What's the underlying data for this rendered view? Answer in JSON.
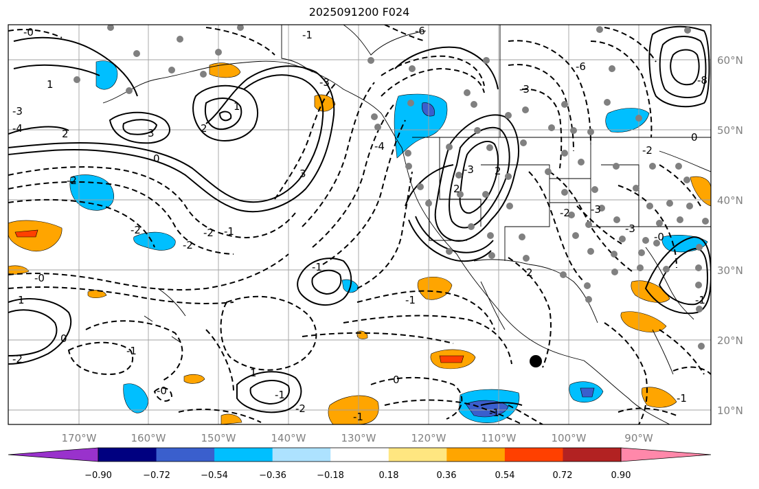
{
  "title": "2025091200 F024",
  "lon_labels": [
    "170°W",
    "160°W",
    "150°W",
    "140°W",
    "130°W",
    "120°W",
    "110°W",
    "100°W",
    "90°W"
  ],
  "lat_labels": [
    "60°N",
    "50°N",
    "40°N",
    "30°N",
    "20°N",
    "10°N"
  ],
  "colorbar": {
    "ticks": [
      "−0.90",
      "−0.72",
      "−0.54",
      "−0.36",
      "−0.18",
      "0.18",
      "0.36",
      "0.54",
      "0.72",
      "0.90"
    ],
    "colors": [
      "#9932CC",
      "#000080",
      "#3A5FCD",
      "#00BFFF",
      "#ADE2FF",
      "#FFFFFF",
      "#FFE680",
      "#FFA500",
      "#FF4000",
      "#B22222",
      "#FF88AA"
    ]
  },
  "contour_labels": [
    "-0",
    "1",
    "-3",
    "-4",
    "2",
    "3",
    "0",
    "-2",
    "2",
    "-2",
    "-2",
    "-1",
    "-2",
    "-0",
    "1",
    "-2",
    "0",
    "-1",
    "-1",
    "-2",
    "-1",
    "-1",
    "0",
    "-1",
    "1",
    "-0",
    "-1",
    "3",
    "-4",
    "-3",
    "1",
    "-1",
    "-3",
    "2",
    "2",
    "-3",
    "-2",
    "-3",
    "-3",
    "-6",
    "-8",
    "0",
    "-2",
    "-6",
    "-1",
    "-0",
    "-1",
    "2"
  ]
}
